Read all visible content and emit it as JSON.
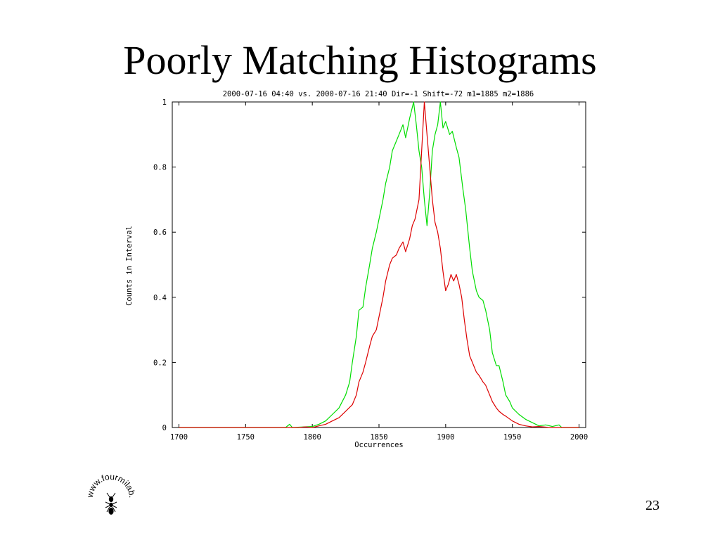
{
  "slide": {
    "title": "Poorly Matching Histograms",
    "page_number": "23",
    "logo_text": "www.fourmilab.ch"
  },
  "chart_data": {
    "type": "line",
    "title": "2000-07-16 04:40 vs. 2000-07-16 21:40 Dir=-1 Shift=-72 m1=1885 m2=1886",
    "xlabel": "Occurrences",
    "ylabel": "Counts in Interval",
    "xlim": [
      1695,
      2005
    ],
    "ylim": [
      0,
      1
    ],
    "x_ticks": [
      1700,
      1750,
      1800,
      1850,
      1900,
      1950,
      2000
    ],
    "y_ticks": [
      0,
      0.2,
      0.4,
      0.6,
      0.8,
      1
    ],
    "y_tick_labels": [
      "0",
      "0.2",
      "0.4",
      "0.6",
      "0.8",
      "1"
    ],
    "grid": false,
    "series": [
      {
        "color": "#00dd00",
        "points": [
          [
            1700,
            0
          ],
          [
            1780,
            0
          ],
          [
            1783,
            0.01
          ],
          [
            1785,
            0
          ],
          [
            1800,
            0.003
          ],
          [
            1805,
            0.01
          ],
          [
            1810,
            0.02
          ],
          [
            1815,
            0.04
          ],
          [
            1820,
            0.06
          ],
          [
            1825,
            0.1
          ],
          [
            1828,
            0.14
          ],
          [
            1830,
            0.2
          ],
          [
            1833,
            0.28
          ],
          [
            1835,
            0.36
          ],
          [
            1838,
            0.37
          ],
          [
            1840,
            0.43
          ],
          [
            1843,
            0.5
          ],
          [
            1845,
            0.55
          ],
          [
            1848,
            0.6
          ],
          [
            1850,
            0.64
          ],
          [
            1853,
            0.7
          ],
          [
            1855,
            0.75
          ],
          [
            1858,
            0.8
          ],
          [
            1860,
            0.85
          ],
          [
            1863,
            0.88
          ],
          [
            1865,
            0.9
          ],
          [
            1868,
            0.93
          ],
          [
            1870,
            0.89
          ],
          [
            1873,
            0.95
          ],
          [
            1876,
            1.0
          ],
          [
            1878,
            0.93
          ],
          [
            1880,
            0.85
          ],
          [
            1882,
            0.8
          ],
          [
            1884,
            0.7
          ],
          [
            1886,
            0.62
          ],
          [
            1888,
            0.72
          ],
          [
            1890,
            0.85
          ],
          [
            1892,
            0.9
          ],
          [
            1894,
            0.93
          ],
          [
            1896,
            1.0
          ],
          [
            1898,
            0.92
          ],
          [
            1900,
            0.94
          ],
          [
            1903,
            0.9
          ],
          [
            1905,
            0.91
          ],
          [
            1908,
            0.86
          ],
          [
            1910,
            0.83
          ],
          [
            1913,
            0.73
          ],
          [
            1915,
            0.67
          ],
          [
            1918,
            0.55
          ],
          [
            1920,
            0.48
          ],
          [
            1923,
            0.42
          ],
          [
            1925,
            0.4
          ],
          [
            1928,
            0.39
          ],
          [
            1930,
            0.36
          ],
          [
            1933,
            0.3
          ],
          [
            1935,
            0.23
          ],
          [
            1938,
            0.19
          ],
          [
            1940,
            0.19
          ],
          [
            1943,
            0.14
          ],
          [
            1945,
            0.1
          ],
          [
            1948,
            0.08
          ],
          [
            1950,
            0.06
          ],
          [
            1955,
            0.04
          ],
          [
            1960,
            0.025
          ],
          [
            1965,
            0.015
          ],
          [
            1970,
            0.005
          ],
          [
            1975,
            0.008
          ],
          [
            1980,
            0.003
          ],
          [
            1985,
            0.008
          ],
          [
            1987,
            0
          ],
          [
            2000,
            0
          ]
        ]
      },
      {
        "color": "#dd0000",
        "points": [
          [
            1700,
            0
          ],
          [
            1790,
            0
          ],
          [
            1795,
            0.002
          ],
          [
            1800,
            0
          ],
          [
            1805,
            0.005
          ],
          [
            1810,
            0.01
          ],
          [
            1815,
            0.02
          ],
          [
            1820,
            0.03
          ],
          [
            1825,
            0.05
          ],
          [
            1830,
            0.07
          ],
          [
            1833,
            0.1
          ],
          [
            1835,
            0.14
          ],
          [
            1838,
            0.17
          ],
          [
            1840,
            0.2
          ],
          [
            1843,
            0.25
          ],
          [
            1845,
            0.28
          ],
          [
            1848,
            0.3
          ],
          [
            1850,
            0.34
          ],
          [
            1853,
            0.4
          ],
          [
            1855,
            0.45
          ],
          [
            1858,
            0.5
          ],
          [
            1860,
            0.52
          ],
          [
            1863,
            0.53
          ],
          [
            1865,
            0.55
          ],
          [
            1868,
            0.57
          ],
          [
            1870,
            0.54
          ],
          [
            1873,
            0.58
          ],
          [
            1875,
            0.62
          ],
          [
            1877,
            0.64
          ],
          [
            1880,
            0.7
          ],
          [
            1882,
            0.85
          ],
          [
            1884,
            1.0
          ],
          [
            1886,
            0.9
          ],
          [
            1888,
            0.8
          ],
          [
            1890,
            0.7
          ],
          [
            1892,
            0.63
          ],
          [
            1894,
            0.6
          ],
          [
            1896,
            0.55
          ],
          [
            1898,
            0.48
          ],
          [
            1900,
            0.42
          ],
          [
            1902,
            0.44
          ],
          [
            1904,
            0.47
          ],
          [
            1906,
            0.45
          ],
          [
            1908,
            0.47
          ],
          [
            1910,
            0.44
          ],
          [
            1912,
            0.4
          ],
          [
            1914,
            0.33
          ],
          [
            1916,
            0.27
          ],
          [
            1918,
            0.22
          ],
          [
            1920,
            0.2
          ],
          [
            1923,
            0.17
          ],
          [
            1925,
            0.16
          ],
          [
            1928,
            0.14
          ],
          [
            1930,
            0.13
          ],
          [
            1933,
            0.1
          ],
          [
            1935,
            0.08
          ],
          [
            1938,
            0.06
          ],
          [
            1940,
            0.05
          ],
          [
            1943,
            0.04
          ],
          [
            1945,
            0.035
          ],
          [
            1950,
            0.02
          ],
          [
            1955,
            0.01
          ],
          [
            1960,
            0.005
          ],
          [
            1965,
            0.002
          ],
          [
            1970,
            0.003
          ],
          [
            1978,
            0
          ],
          [
            2000,
            0
          ]
        ]
      }
    ]
  }
}
